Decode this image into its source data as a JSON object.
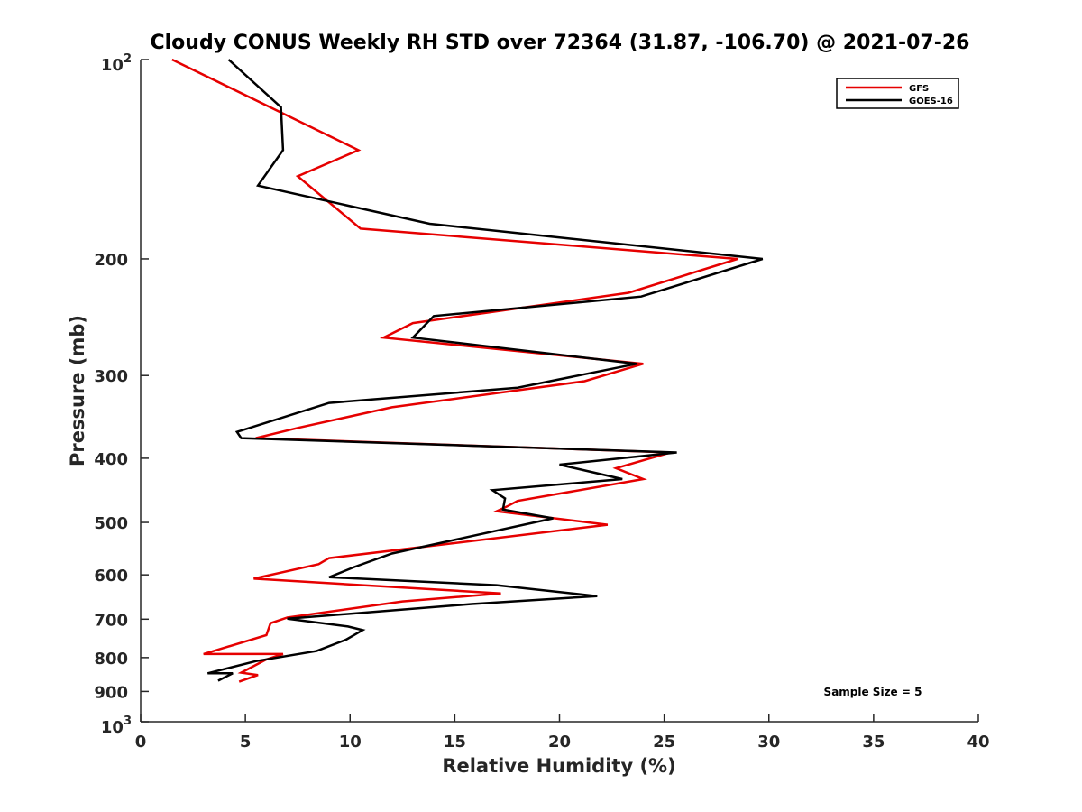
{
  "chart_data": {
    "type": "line",
    "title": "Cloudy CONUS Weekly RH STD over 72364 (31.87, -106.70) @ 2021-07-26",
    "xlabel": "Relative Humidity (%)",
    "ylabel": "Pressure (mb)",
    "xlim": [
      0,
      40
    ],
    "ylim": [
      100,
      1000
    ],
    "y_scale": "log",
    "y_reversed": true,
    "x_ticks": [
      0,
      5,
      10,
      15,
      20,
      25,
      30,
      35,
      40
    ],
    "x_tick_labels": [
      "0",
      "5",
      "10",
      "15",
      "20",
      "25",
      "30",
      "35",
      "40"
    ],
    "y_ticks": [
      100,
      200,
      300,
      400,
      500,
      600,
      700,
      800,
      900,
      1000
    ],
    "y_tick_labels": [
      {
        "base": "10",
        "sup": "2"
      },
      {
        "base": "200",
        "sup": ""
      },
      {
        "base": "300",
        "sup": ""
      },
      {
        "base": "400",
        "sup": ""
      },
      {
        "base": "500",
        "sup": ""
      },
      {
        "base": "600",
        "sup": ""
      },
      {
        "base": "700",
        "sup": ""
      },
      {
        "base": "800",
        "sup": ""
      },
      {
        "base": "900",
        "sup": ""
      },
      {
        "base": "10",
        "sup": "3"
      }
    ],
    "legend_position": "top-right",
    "annotation": "Sample Size = 5",
    "series": [
      {
        "name": "GFS",
        "color": "#e60000",
        "points": [
          [
            1.5,
            100
          ],
          [
            10.4,
            137
          ],
          [
            7.5,
            150
          ],
          [
            10.5,
            180
          ],
          [
            28.5,
            200
          ],
          [
            23.3,
            225
          ],
          [
            13.0,
            250
          ],
          [
            11.6,
            263
          ],
          [
            24.0,
            288
          ],
          [
            21.2,
            306
          ],
          [
            12.0,
            335
          ],
          [
            7.5,
            360
          ],
          [
            5.5,
            373
          ],
          [
            25.3,
            392
          ],
          [
            22.7,
            414
          ],
          [
            24.0,
            430
          ],
          [
            18.0,
            464
          ],
          [
            17.5,
            473
          ],
          [
            17.0,
            481
          ],
          [
            22.3,
            504
          ],
          [
            9.0,
            566
          ],
          [
            8.5,
            578
          ],
          [
            5.4,
            608
          ],
          [
            17.2,
            640
          ],
          [
            12.5,
            658
          ],
          [
            7.0,
            696
          ],
          [
            6.2,
            710
          ],
          [
            6.0,
            740
          ],
          [
            3.0,
            790
          ],
          [
            6.8,
            790
          ],
          [
            6.0,
            805
          ],
          [
            4.8,
            843
          ],
          [
            5.6,
            850
          ],
          [
            4.7,
            870
          ]
        ]
      },
      {
        "name": "GOES-16",
        "color": "#000000",
        "points": [
          [
            4.2,
            100
          ],
          [
            6.7,
            118
          ],
          [
            6.8,
            137
          ],
          [
            5.6,
            155
          ],
          [
            13.8,
            177
          ],
          [
            29.7,
            200
          ],
          [
            23.9,
            228
          ],
          [
            14.0,
            244
          ],
          [
            13.0,
            263
          ],
          [
            23.7,
            288
          ],
          [
            18.0,
            313
          ],
          [
            9.0,
            330
          ],
          [
            4.6,
            365
          ],
          [
            4.8,
            373
          ],
          [
            25.6,
            392
          ],
          [
            20.0,
            409
          ],
          [
            23.0,
            430
          ],
          [
            16.8,
            447
          ],
          [
            17.4,
            460
          ],
          [
            17.3,
            478
          ],
          [
            19.7,
            493
          ],
          [
            12.0,
            557
          ],
          [
            10.2,
            584
          ],
          [
            9.0,
            605
          ],
          [
            17.0,
            622
          ],
          [
            21.8,
            646
          ],
          [
            15.8,
            664
          ],
          [
            7.0,
            699
          ],
          [
            9.9,
            718
          ],
          [
            10.6,
            727
          ],
          [
            9.8,
            752
          ],
          [
            8.4,
            782
          ],
          [
            5.5,
            810
          ],
          [
            3.2,
            845
          ],
          [
            4.4,
            845
          ],
          [
            3.7,
            867
          ]
        ]
      }
    ]
  }
}
